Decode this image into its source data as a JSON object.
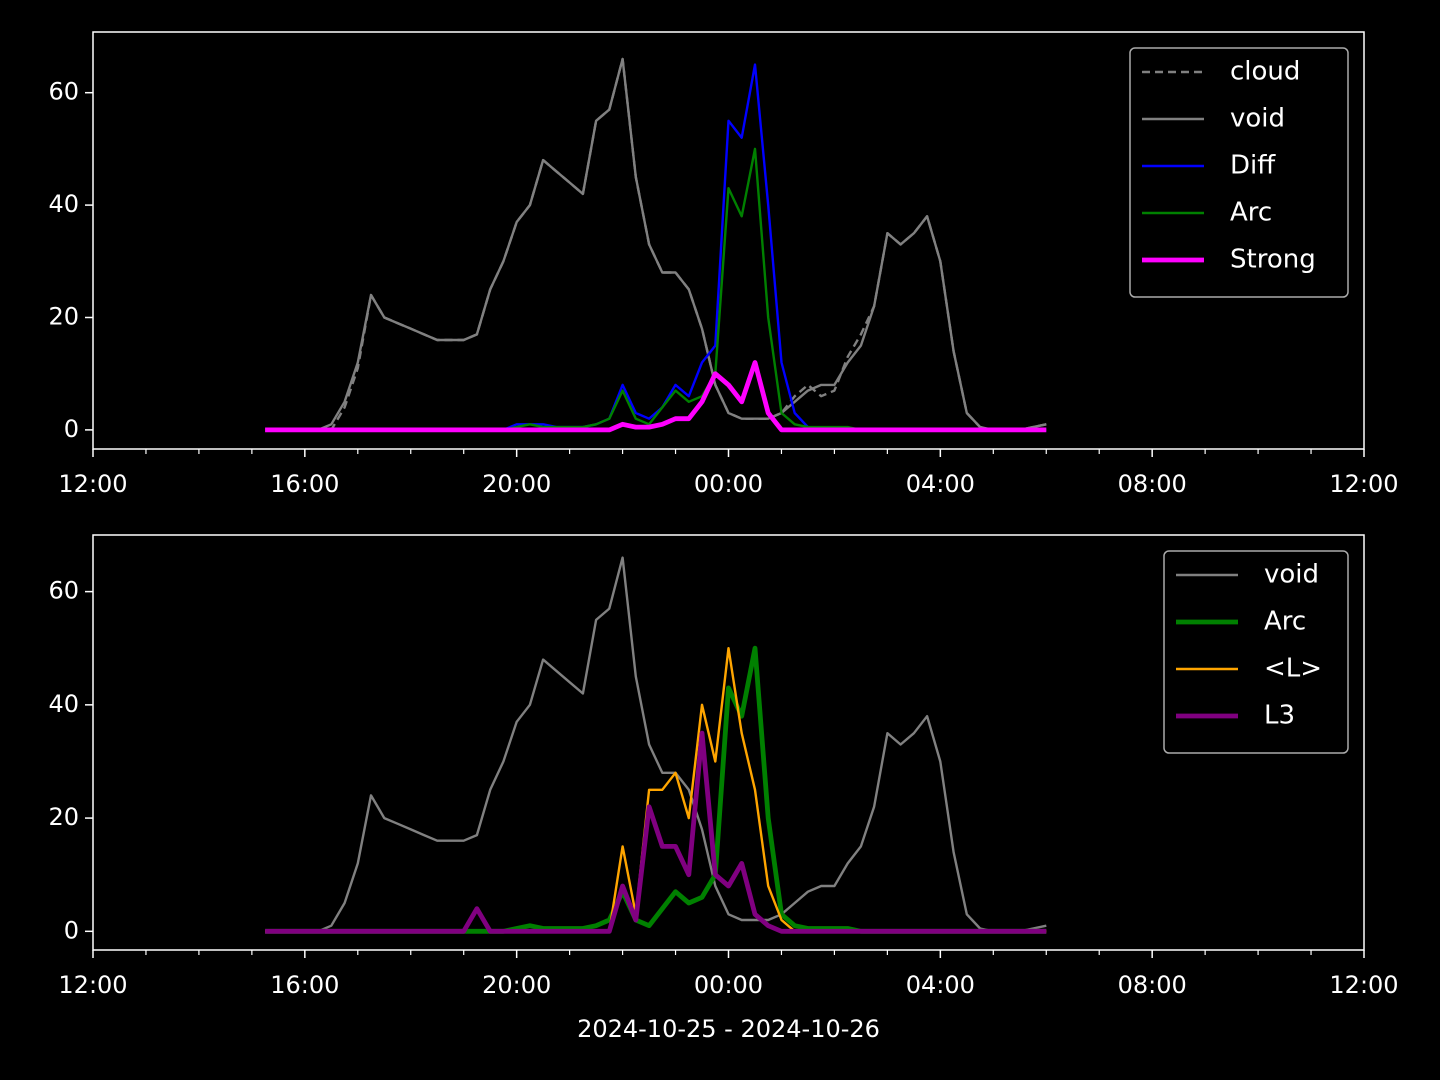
{
  "chart_data": [
    {
      "type": "line",
      "x": [
        15.25,
        15.5,
        15.75,
        16,
        16.25,
        16.5,
        16.75,
        17,
        17.25,
        17.5,
        17.75,
        18,
        18.25,
        18.5,
        18.75,
        19,
        19.25,
        19.5,
        19.75,
        20,
        20.25,
        20.5,
        20.75,
        21,
        21.25,
        21.5,
        21.75,
        22,
        22.25,
        22.5,
        22.75,
        23,
        23.25,
        23.5,
        23.75,
        24,
        24.25,
        24.5,
        24.75,
        25,
        25.25,
        25.5,
        25.75,
        26,
        26.25,
        26.5,
        26.75,
        27,
        27.25,
        27.5,
        27.75,
        28,
        28.25,
        28.5,
        28.75,
        29,
        29.25,
        29.5,
        29.75,
        30
      ],
      "xlim": [
        12,
        36
      ],
      "xticks": [
        {
          "value": 12,
          "label": "12:00"
        },
        {
          "value": 16,
          "label": "16:00"
        },
        {
          "value": 20,
          "label": "20:00"
        },
        {
          "value": 24,
          "label": "00:00"
        },
        {
          "value": 28,
          "label": "04:00"
        },
        {
          "value": 32,
          "label": "08:00"
        },
        {
          "value": 36,
          "label": "12:00"
        }
      ],
      "ylim": [
        -3.4,
        70.8
      ],
      "yticks": [
        0,
        20,
        40,
        60
      ],
      "legend": "upper right",
      "series": [
        {
          "name": "cloud",
          "color": "#808080",
          "linestyle": "dashed",
          "linewidth": 1.5,
          "values": [
            0,
            0,
            0,
            0,
            0,
            0,
            4,
            11,
            24,
            20,
            19,
            18,
            17,
            16,
            16,
            16,
            17,
            25,
            30,
            37,
            40,
            48,
            46,
            44,
            42,
            55,
            57,
            66,
            45,
            33,
            28,
            28,
            25,
            18,
            8,
            3,
            2,
            2,
            2,
            3,
            6,
            8,
            6,
            7,
            13,
            17,
            22,
            35,
            33,
            35,
            38,
            30,
            14,
            3,
            0.5,
            0,
            0,
            0,
            0.5,
            1
          ]
        },
        {
          "name": "void",
          "color": "#808080",
          "linestyle": "solid",
          "linewidth": 1.5,
          "values": [
            0,
            0,
            0,
            0,
            0,
            1,
            5,
            12,
            24,
            20,
            19,
            18,
            17,
            16,
            16,
            16,
            17,
            25,
            30,
            37,
            40,
            48,
            46,
            44,
            42,
            55,
            57,
            66,
            45,
            33,
            28,
            28,
            25,
            18,
            8,
            3,
            2,
            2,
            2,
            3,
            5,
            7,
            8,
            8,
            12,
            15,
            22,
            35,
            33,
            35,
            38,
            30,
            14,
            3,
            0.5,
            0,
            0,
            0,
            0.5,
            1
          ]
        },
        {
          "name": "Diff",
          "color": "#0000ff",
          "linestyle": "solid",
          "linewidth": 1.5,
          "values": [
            0,
            0,
            0,
            0,
            0,
            0,
            0,
            0,
            0,
            0,
            0,
            0,
            0,
            0,
            0,
            0,
            0,
            0,
            0,
            1,
            1,
            1,
            0.5,
            0.5,
            0.5,
            1,
            2,
            8,
            3,
            2,
            4,
            8,
            6,
            12,
            15,
            55,
            52,
            65,
            40,
            12,
            3,
            0.5,
            0,
            0,
            0,
            0,
            0,
            0,
            0,
            0,
            0,
            0,
            0,
            0,
            0,
            0,
            0,
            0,
            0,
            0
          ]
        },
        {
          "name": "Arc",
          "color": "#008000",
          "linestyle": "solid",
          "linewidth": 1.5,
          "values": [
            0,
            0,
            0,
            0,
            0,
            0,
            0,
            0,
            0,
            0,
            0,
            0,
            0,
            0,
            0,
            0,
            0,
            0,
            0,
            0.5,
            1,
            0.5,
            0.5,
            0.5,
            0.5,
            1,
            2,
            7,
            2,
            1,
            4,
            7,
            5,
            6,
            10,
            43,
            38,
            50,
            20,
            3,
            1,
            0.5,
            0.5,
            0.5,
            0.5,
            0,
            0,
            0,
            0,
            0,
            0,
            0,
            0,
            0,
            0,
            0,
            0,
            0,
            0,
            0
          ]
        },
        {
          "name": "Strong",
          "color": "#ff00ff",
          "linestyle": "solid",
          "linewidth": 3,
          "values": [
            0,
            0,
            0,
            0,
            0,
            0,
            0,
            0,
            0,
            0,
            0,
            0,
            0,
            0,
            0,
            0,
            0,
            0,
            0,
            0,
            0,
            0,
            0,
            0,
            0,
            0,
            0,
            1,
            0.5,
            0.5,
            1,
            2,
            2,
            5,
            10,
            8,
            5,
            12,
            3,
            0,
            0,
            0,
            0,
            0,
            0,
            0,
            0,
            0,
            0,
            0,
            0,
            0,
            0,
            0,
            0,
            0,
            0,
            0,
            0,
            0
          ]
        }
      ]
    },
    {
      "type": "line",
      "x": [
        15.25,
        15.5,
        15.75,
        16,
        16.25,
        16.5,
        16.75,
        17,
        17.25,
        17.5,
        17.75,
        18,
        18.25,
        18.5,
        18.75,
        19,
        19.25,
        19.5,
        19.75,
        20,
        20.25,
        20.5,
        20.75,
        21,
        21.25,
        21.5,
        21.75,
        22,
        22.25,
        22.5,
        22.75,
        23,
        23.25,
        23.5,
        23.75,
        24,
        24.25,
        24.5,
        24.75,
        25,
        25.25,
        25.5,
        25.75,
        26,
        26.25,
        26.5,
        26.75,
        27,
        27.25,
        27.5,
        27.75,
        28,
        28.25,
        28.5,
        28.75,
        29,
        29.25,
        29.5,
        29.75,
        30
      ],
      "xlim": [
        12,
        36
      ],
      "xticks": [
        {
          "value": 12,
          "label": "12:00"
        },
        {
          "value": 16,
          "label": "16:00"
        },
        {
          "value": 20,
          "label": "20:00"
        },
        {
          "value": 24,
          "label": "00:00"
        },
        {
          "value": 28,
          "label": "04:00"
        },
        {
          "value": 32,
          "label": "08:00"
        },
        {
          "value": 36,
          "label": "12:00"
        }
      ],
      "xlabel": "2024-10-25 - 2024-10-26",
      "ylim": [
        -3.3,
        70
      ],
      "yticks": [
        0,
        20,
        40,
        60
      ],
      "legend": "upper right",
      "series": [
        {
          "name": "void",
          "color": "#808080",
          "linestyle": "solid",
          "linewidth": 1.5,
          "values": [
            0,
            0,
            0,
            0,
            0,
            1,
            5,
            12,
            24,
            20,
            19,
            18,
            17,
            16,
            16,
            16,
            17,
            25,
            30,
            37,
            40,
            48,
            46,
            44,
            42,
            55,
            57,
            66,
            45,
            33,
            28,
            28,
            25,
            18,
            8,
            3,
            2,
            2,
            2,
            3,
            5,
            7,
            8,
            8,
            12,
            15,
            22,
            35,
            33,
            35,
            38,
            30,
            14,
            3,
            0.5,
            0,
            0,
            0,
            0.5,
            1
          ]
        },
        {
          "name": "Arc",
          "color": "#008000",
          "linestyle": "solid",
          "linewidth": 3,
          "values": [
            0,
            0,
            0,
            0,
            0,
            0,
            0,
            0,
            0,
            0,
            0,
            0,
            0,
            0,
            0,
            0,
            0,
            0,
            0,
            0.5,
            1,
            0.5,
            0.5,
            0.5,
            0.5,
            1,
            2,
            7,
            2,
            1,
            4,
            7,
            5,
            6,
            10,
            43,
            38,
            50,
            20,
            3,
            1,
            0.5,
            0.5,
            0.5,
            0.5,
            0,
            0,
            0,
            0,
            0,
            0,
            0,
            0,
            0,
            0,
            0,
            0,
            0,
            0,
            0
          ]
        },
        {
          "name": "<L>",
          "color": "#ffa500",
          "linestyle": "solid",
          "linewidth": 1.5,
          "values": [
            0,
            0,
            0,
            0,
            0,
            0,
            0,
            0,
            0,
            0,
            0,
            0,
            0,
            0,
            0,
            0,
            4,
            0,
            0,
            0,
            0,
            0,
            0,
            0,
            0,
            0,
            0,
            15,
            3,
            25,
            25,
            28,
            20,
            40,
            30,
            50,
            35,
            25,
            8,
            2,
            0,
            0,
            0,
            0,
            0,
            0,
            0,
            0,
            0,
            0,
            0,
            0,
            0,
            0,
            0,
            0,
            0,
            0,
            0,
            0
          ]
        },
        {
          "name": "L3",
          "color": "#800080",
          "linestyle": "solid",
          "linewidth": 3,
          "values": [
            0,
            0,
            0,
            0,
            0,
            0,
            0,
            0,
            0,
            0,
            0,
            0,
            0,
            0,
            0,
            0,
            4,
            0,
            0,
            0,
            0,
            0,
            0,
            0,
            0,
            0,
            0,
            8,
            2,
            22,
            15,
            15,
            10,
            35,
            10,
            8,
            12,
            3,
            1,
            0,
            0,
            0,
            0,
            0,
            0,
            0,
            0,
            0,
            0,
            0,
            0,
            0,
            0,
            0,
            0,
            0,
            0,
            0,
            0,
            0
          ]
        }
      ]
    }
  ]
}
